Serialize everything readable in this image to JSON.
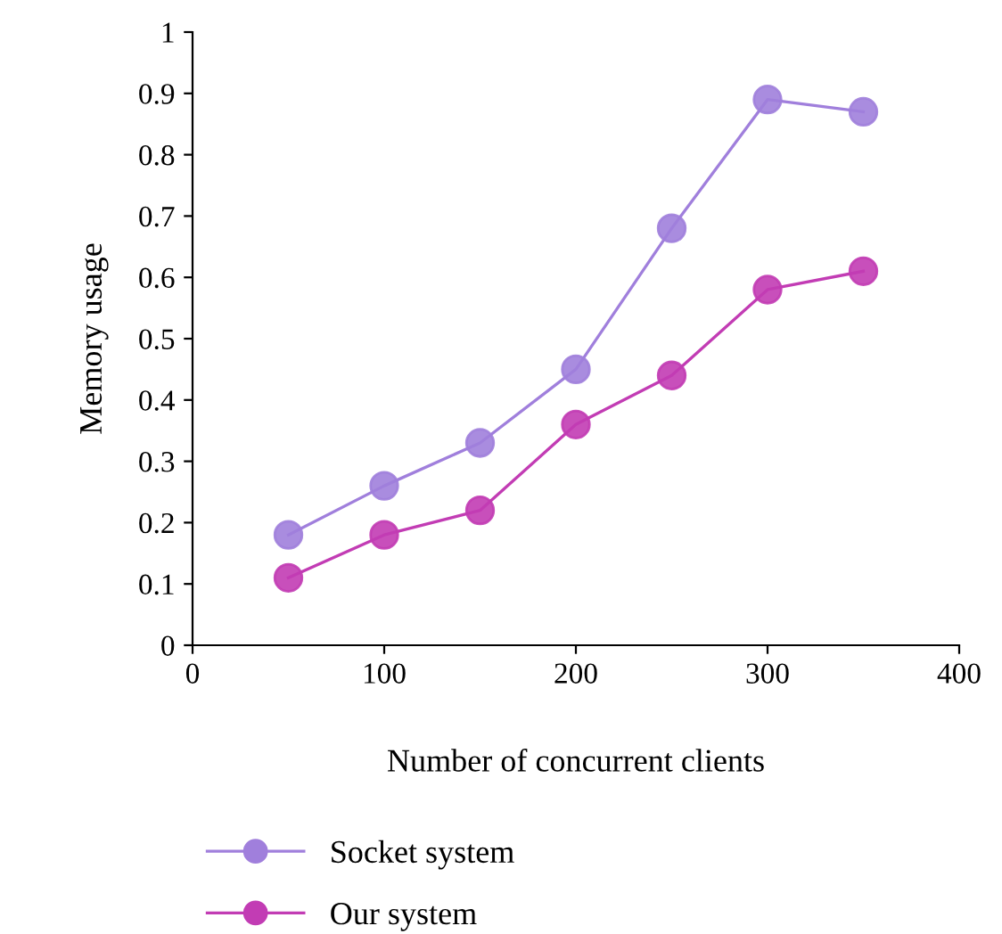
{
  "chart_data": {
    "type": "line",
    "xlabel": "Number of concurrent clients",
    "ylabel": "Memory usage",
    "x": [
      50,
      100,
      150,
      200,
      250,
      300,
      350
    ],
    "series": [
      {
        "name": "Socket system",
        "color": "#a07fdc",
        "values": [
          0.18,
          0.26,
          0.33,
          0.45,
          0.68,
          0.89,
          0.87
        ]
      },
      {
        "name": "Our system",
        "color": "#c23cb4",
        "values": [
          0.11,
          0.18,
          0.22,
          0.36,
          0.44,
          0.58,
          0.61
        ]
      }
    ],
    "xlim": [
      0,
      400
    ],
    "xticks": [
      0,
      100,
      200,
      300,
      400
    ],
    "ylim": [
      0,
      1
    ],
    "yticks": [
      0,
      0.1,
      0.2,
      0.3,
      0.4,
      0.5,
      0.6,
      0.7,
      0.8,
      0.9,
      1
    ],
    "grid": false,
    "legend": "bottom",
    "marker": "circle",
    "line_style": "solid"
  }
}
